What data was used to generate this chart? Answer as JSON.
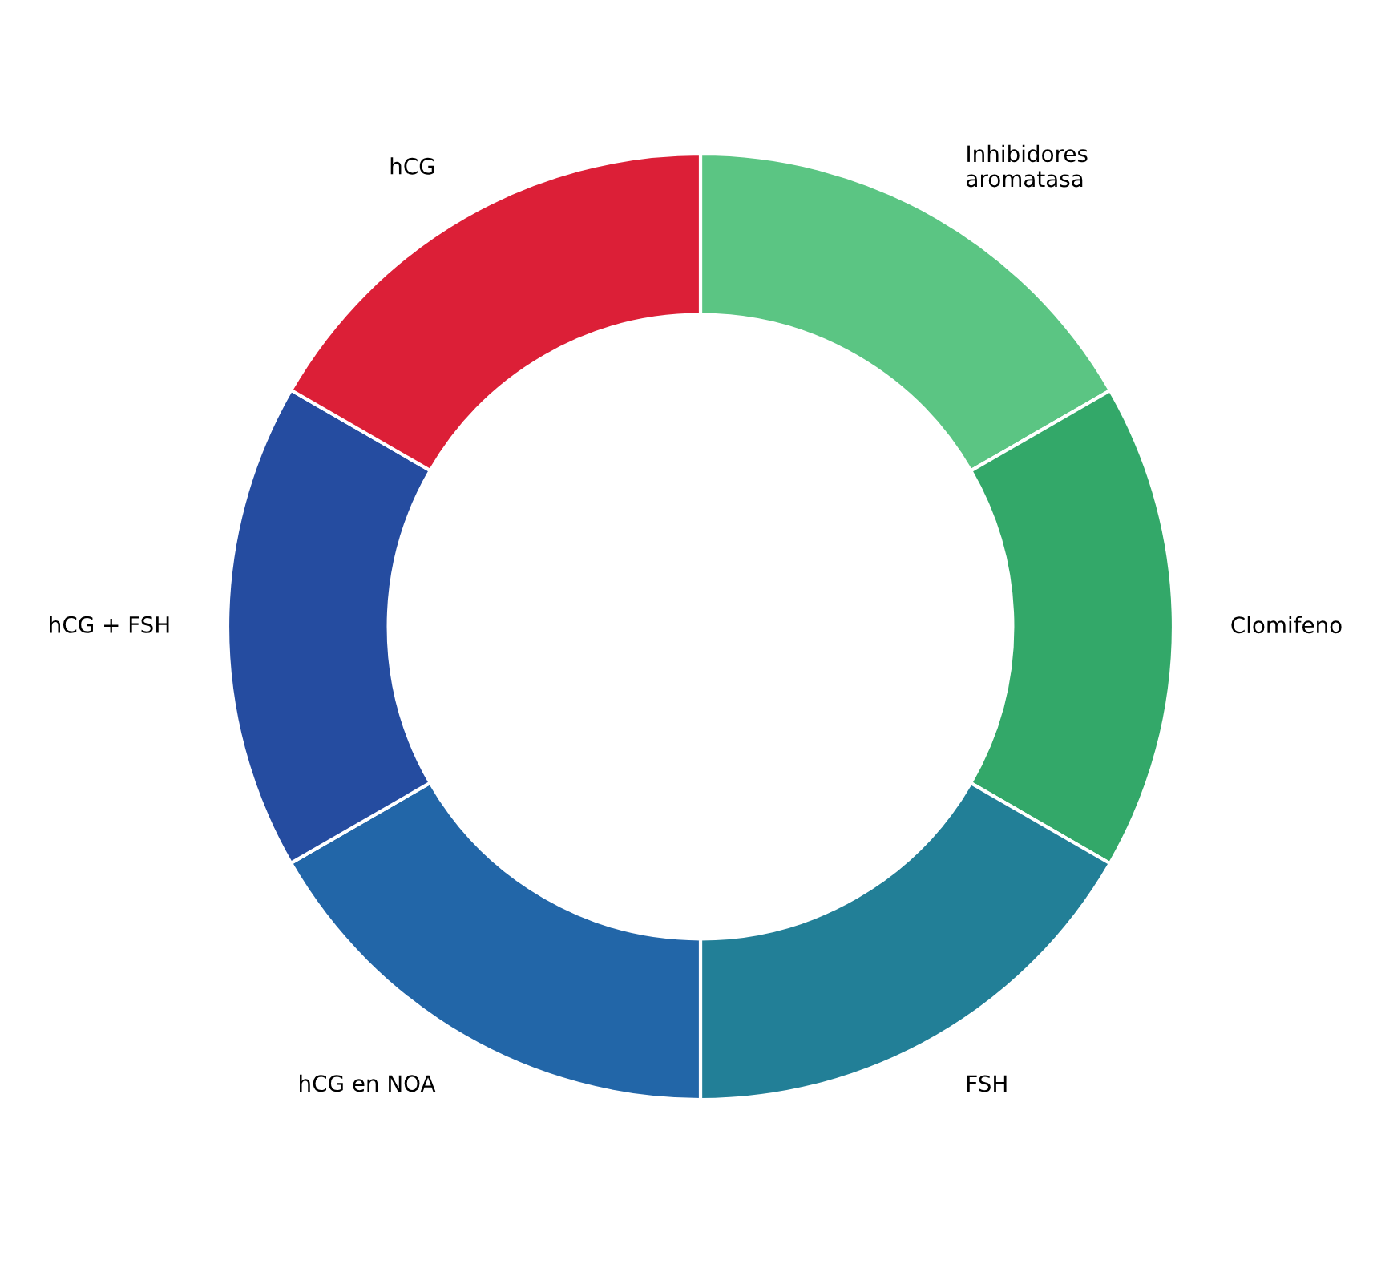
{
  "chart_data": {
    "type": "donut",
    "categories": [
      "Inhibidores\naromatasa",
      "Clomifeno",
      "FSH",
      "hCG en NOA",
      "hCG + FSH",
      "hCG"
    ],
    "values": [
      16.67,
      16.67,
      16.66,
      16.67,
      16.67,
      16.66
    ],
    "colors": [
      "#5bc583",
      "#33a869",
      "#227f97",
      "#2266a8",
      "#254ca0",
      "#dc1f37"
    ]
  }
}
